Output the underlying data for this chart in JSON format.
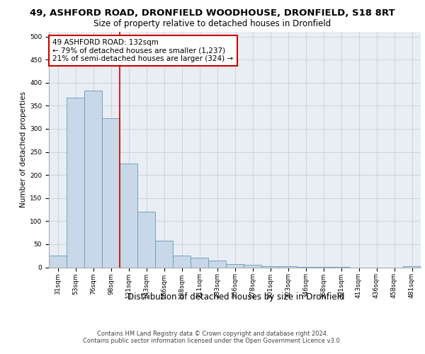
{
  "title_line1": "49, ASHFORD ROAD, DRONFIELD WOODHOUSE, DRONFIELD, S18 8RT",
  "title_line2": "Size of property relative to detached houses in Dronfield",
  "xlabel": "Distribution of detached houses by size in Dronfield",
  "ylabel": "Number of detached properties",
  "footer_line1": "Contains HM Land Registry data © Crown copyright and database right 2024.",
  "footer_line2": "Contains public sector information licensed under the Open Government Licence v3.0.",
  "categories": [
    "31sqm",
    "53sqm",
    "76sqm",
    "98sqm",
    "121sqm",
    "143sqm",
    "166sqm",
    "188sqm",
    "211sqm",
    "233sqm",
    "256sqm",
    "278sqm",
    "301sqm",
    "323sqm",
    "346sqm",
    "368sqm",
    "391sqm",
    "413sqm",
    "436sqm",
    "458sqm",
    "481sqm"
  ],
  "values": [
    25,
    368,
    383,
    323,
    225,
    120,
    57,
    25,
    20,
    15,
    7,
    5,
    3,
    2,
    1,
    1,
    1,
    0,
    0,
    0,
    3
  ],
  "bar_color": "#c8d8e8",
  "bar_edge_color": "#6699bb",
  "grid_color": "#c8d0d8",
  "annotation_text": "49 ASHFORD ROAD: 132sqm\n← 79% of detached houses are smaller (1,237)\n21% of semi-detached houses are larger (324) →",
  "annotation_box_color": "#ffffff",
  "annotation_box_edge_color": "#cc0000",
  "vline_color": "#cc0000",
  "vline_pos": 3.5,
  "ylim": [
    0,
    510
  ],
  "yticks": [
    0,
    50,
    100,
    150,
    200,
    250,
    300,
    350,
    400,
    450,
    500
  ],
  "background_color": "#e8eef4",
  "annotation_fontsize": 7.5,
  "title1_fontsize": 9.5,
  "title2_fontsize": 8.5,
  "ylabel_fontsize": 7.5,
  "xlabel_fontsize": 8.5,
  "tick_fontsize": 6.5,
  "footer_fontsize": 6.0
}
